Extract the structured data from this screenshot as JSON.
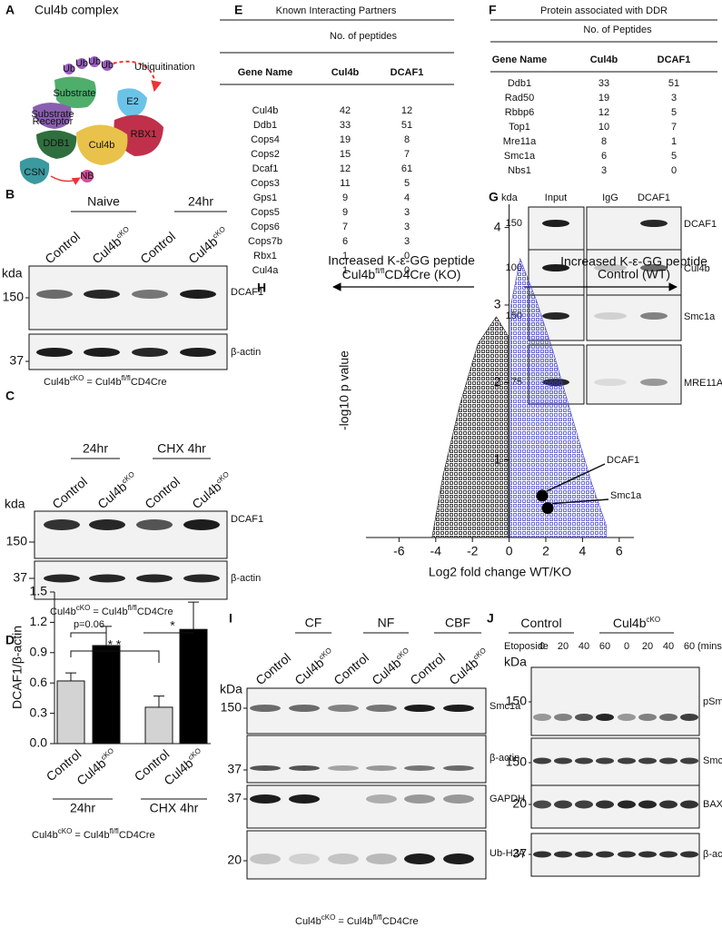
{
  "A": {
    "label": "A",
    "title": "Cul4b complex",
    "ubiquitination": "Ubiquitination",
    "ub": "Ub",
    "substrate": "Substrate",
    "e2": "E2",
    "receptor": [
      "Substrate",
      "Receptor"
    ],
    "rbx1": "RBX1",
    "ddb1": "DDB1",
    "cul4b": "Cul4b",
    "csn": "CSN",
    "nb": "NB"
  },
  "B": {
    "label": "B",
    "groups": [
      "Naive",
      "24hr"
    ],
    "lanes": [
      [
        {
          "t": "Control"
        }
      ],
      [
        {
          "t": "Cul4b"
        },
        {
          "sup": "cKO"
        }
      ],
      [
        {
          "t": "Control"
        }
      ],
      [
        {
          "t": "Cul4b"
        },
        {
          "sup": "cKO"
        }
      ]
    ],
    "kda": "kda",
    "markers": [
      150,
      37
    ],
    "proteins": [
      "DCAF1",
      "β-actin"
    ],
    "note": [
      {
        "t": "Cul4b"
      },
      {
        "sup": "cKO"
      },
      {
        "t": " = Cul4b"
      },
      {
        "sup": "fl/fl"
      },
      {
        "t": "CD4Cre"
      }
    ]
  },
  "C": {
    "label": "C",
    "groups": [
      "24hr",
      "CHX 4hr"
    ],
    "lanes": [
      [
        {
          "t": "Control"
        }
      ],
      [
        {
          "t": "Cul4b"
        },
        {
          "sup": "cKO"
        }
      ],
      [
        {
          "t": "Control"
        }
      ],
      [
        {
          "t": "Cul4b"
        },
        {
          "sup": "cKO"
        }
      ]
    ],
    "kda": "kda",
    "markers": [
      150,
      37
    ],
    "proteins": [
      "DCAF1",
      "β-actin"
    ],
    "note": [
      {
        "t": "Cul4b"
      },
      {
        "sup": "cKO"
      },
      {
        "t": " = Cul4b"
      },
      {
        "sup": "fl/fl"
      },
      {
        "t": "CD4Cre"
      }
    ]
  },
  "E": {
    "label": "E",
    "title": "Known Interacting Partners",
    "subheader": "No. of peptides",
    "columns": [
      "Gene Name",
      "Cul4b",
      "DCAF1"
    ],
    "rows": [
      [
        "Cul4b",
        42,
        12
      ],
      [
        "Ddb1",
        33,
        51
      ],
      [
        "Cops4",
        19,
        8
      ],
      [
        "Cops2",
        15,
        7
      ],
      [
        "Dcaf1",
        12,
        61
      ],
      [
        "Cops3",
        11,
        5
      ],
      [
        "Gps1",
        9,
        4
      ],
      [
        "Cops5",
        9,
        3
      ],
      [
        "Cops6",
        7,
        3
      ],
      [
        "Cops7b",
        6,
        3
      ],
      [
        "Rbx1",
        1,
        0
      ],
      [
        "Cul4a",
        1,
        0
      ]
    ]
  },
  "F": {
    "label": "F",
    "title": "Protein associated with DDR",
    "subheader": "No. of Peptides",
    "columns": [
      "Gene Name",
      "Cul4b",
      "DCAF1"
    ],
    "rows": [
      [
        "Ddb1",
        33,
        51
      ],
      [
        "Rad50",
        19,
        3
      ],
      [
        "Rbbp6",
        12,
        5
      ],
      [
        "Top1",
        10,
        7
      ],
      [
        "Mre11a",
        8,
        1
      ],
      [
        "Smc1a",
        6,
        5
      ],
      [
        "Nbs1",
        3,
        0
      ]
    ]
  },
  "G": {
    "label": "G",
    "kda": "kda",
    "columns": [
      "Input",
      "IgG",
      "DCAF1"
    ],
    "markers": [
      150,
      100,
      150,
      75
    ],
    "proteins": [
      "DCAF1",
      "Cul4b",
      "Smc1a",
      "MRE11A"
    ]
  },
  "I": {
    "label": "I",
    "groups": [
      "CF",
      "NF",
      "CBF"
    ],
    "lanes": [
      [
        {
          "t": "Control"
        }
      ],
      [
        {
          "t": "Cul4b"
        },
        {
          "sup": "cKO"
        }
      ],
      [
        {
          "t": "Control"
        }
      ],
      [
        {
          "t": "Cul4b"
        },
        {
          "sup": "cKO"
        }
      ],
      [
        {
          "t": "Control"
        }
      ],
      [
        {
          "t": "Cul4b"
        },
        {
          "sup": "cKO"
        }
      ]
    ],
    "kda": "kDa",
    "markers": [
      150,
      37,
      37,
      20
    ],
    "proteins": [
      "Smc1a",
      "β-actin",
      "GAPDH",
      "Ub-H2A"
    ],
    "note": [
      {
        "t": "Cul4b"
      },
      {
        "sup": "cKO"
      },
      {
        "t": " = Cul4b"
      },
      {
        "sup": "fl/fl"
      },
      {
        "t": "CD4Cre"
      }
    ]
  },
  "J": {
    "label": "J",
    "groups": [
      [
        {
          "t": "Control"
        }
      ],
      [
        {
          "t": "Cul4b"
        },
        {
          "sup": "cKO"
        }
      ]
    ],
    "treatment": "Etoposide",
    "times": [
      0,
      20,
      40,
      60,
      0,
      20,
      40,
      60
    ],
    "unit": "(mins)",
    "kda": "kDa",
    "markers": [
      150,
      150,
      20,
      37
    ],
    "proteins": [
      "pSmc1a",
      "Smc1a",
      "BAX",
      "β-actin"
    ]
  },
  "chart_data": [
    {
      "type": "bar",
      "label": "D",
      "ylabel": "DCAF1/β-actin",
      "categories": [
        [
          {
            "t": "Control"
          }
        ],
        [
          {
            "t": "Cul4b"
          },
          {
            "sup": "cKO"
          }
        ],
        [
          {
            "t": "Control"
          }
        ],
        [
          {
            "t": "Cul4b"
          },
          {
            "sup": "cKO"
          }
        ]
      ],
      "groups": [
        "24hr",
        "CHX 4hr"
      ],
      "values": [
        0.62,
        0.97,
        0.36,
        1.13
      ],
      "errors": [
        0.08,
        0.19,
        0.11,
        0.27
      ],
      "colors": [
        "#d3d3d3",
        "#000000",
        "#d3d3d3",
        "#000000"
      ],
      "ylim": [
        0,
        1.5
      ],
      "yticks": [
        {
          "value": 0,
          "label": "0.0"
        },
        0.3,
        0.6,
        0.9,
        1.2,
        1.5
      ],
      "annotations": [
        "p=0.06",
        "* *",
        "*"
      ],
      "note": [
        {
          "t": "Cul4b"
        },
        {
          "sup": "cKO"
        },
        {
          "t": " = Cul4b"
        },
        {
          "sup": "fl/fl"
        },
        {
          "t": "CD4Cre"
        }
      ]
    },
    {
      "type": "scatter",
      "label": "H",
      "left_annotation": [
        "Increased K-ε-GG peptide",
        [
          {
            "t": "Cul4b"
          },
          {
            "sup": "fl/fl"
          },
          {
            "t": "CD4Cre (KO)"
          }
        ]
      ],
      "right_annotation": [
        "Increased K-ε-GG peptide",
        "Control (WT)"
      ],
      "xlabel": "Log2 fold change WT/KO",
      "ylabel": "-log10 p value",
      "names": [
        "DCAF1",
        "Smc1a"
      ],
      "x": [
        1.8,
        2.1
      ],
      "values": [
        0.54,
        0.38
      ],
      "color": "#000000",
      "cloud_colors": [
        "#000000",
        "#3a3acc"
      ],
      "xlim": [
        -7.8,
        6.8
      ],
      "ylim": [
        0,
        4.3
      ],
      "xticks": [
        -6,
        -4,
        -2,
        0,
        2,
        4,
        6
      ],
      "yticks": [
        1,
        2,
        3,
        4
      ]
    }
  ]
}
